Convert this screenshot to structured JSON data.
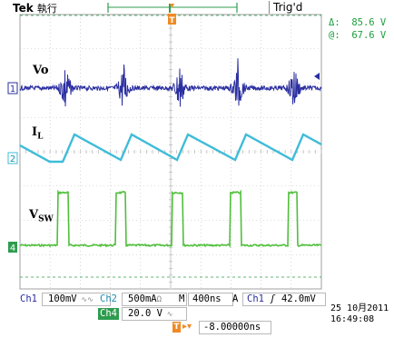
{
  "header": {
    "brand": "Tek",
    "acq_mode": "執行",
    "trigger_state": "Trig'd"
  },
  "cursor_readout": {
    "delta_label": "Δ:",
    "delta_value": "85.6 V",
    "at_label": "@:",
    "at_value": "67.6 V"
  },
  "channels": {
    "ch1_marker": "1",
    "ch2_marker": "2",
    "ch4_marker": "4"
  },
  "trace_labels": {
    "vo": "Vo",
    "il_main": "I",
    "il_sub": "L",
    "vsw_main": "V",
    "vsw_sub": "SW"
  },
  "trigger_marker": "T",
  "status_bar": {
    "ch1_label": "Ch1",
    "ch1_scale": "100mV",
    "ch2_label": "Ch2",
    "ch2_scale": "500mA",
    "ch2_unit": "Ω",
    "timebase_label": "M",
    "timebase": "400ns",
    "acq_label": "A",
    "trig_source": "Ch1",
    "trig_level": "42.0mV",
    "ch4_label": "Ch4",
    "ch4_scale": "20.0 V",
    "trig_position": "-8.00000ns"
  },
  "date": {
    "day_month_year": "25 10月2011",
    "time": "16:49:08"
  },
  "colors": {
    "ch1": "#2b2fa0",
    "ch2": "#3fbcd8",
    "ch4": "#4fbf3a",
    "trigger": "#f08a24",
    "grid": "#bcbcbc",
    "readout": "#1a9f3c"
  }
}
